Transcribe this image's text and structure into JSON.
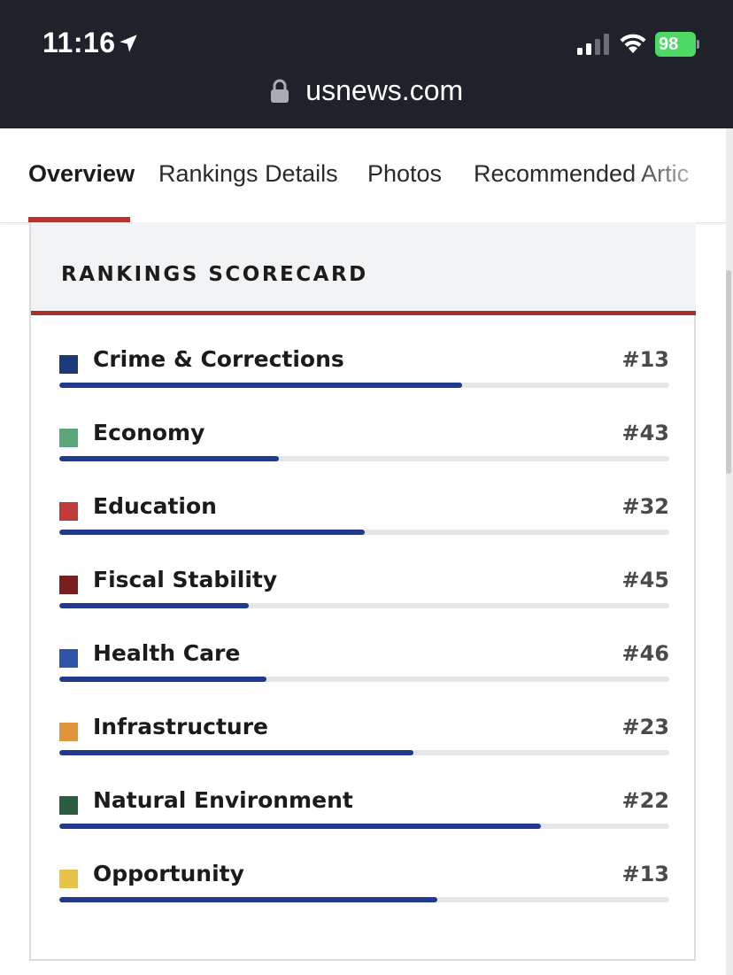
{
  "status_bar": {
    "time": "11:16",
    "battery": "98",
    "url": "usnews.com"
  },
  "tabs": [
    {
      "label": "Overview",
      "active": true
    },
    {
      "label": "Rankings Details",
      "active": false
    },
    {
      "label": "Photos",
      "active": false
    },
    {
      "label": "Recommended Artic",
      "active": false
    }
  ],
  "scorecard": {
    "title": "RANKINGS SCORECARD",
    "items": [
      {
        "label": "Crime & Corrections",
        "rank": "#13",
        "color": "#1c3a7a",
        "fill": 0.66
      },
      {
        "label": "Economy",
        "rank": "#43",
        "color": "#5aa77c",
        "fill": 0.36
      },
      {
        "label": "Education",
        "rank": "#32",
        "color": "#c0393b",
        "fill": 0.5
      },
      {
        "label": "Fiscal Stability",
        "rank": "#45",
        "color": "#7a1f1f",
        "fill": 0.31
      },
      {
        "label": "Health Care",
        "rank": "#46",
        "color": "#2e55a8",
        "fill": 0.34
      },
      {
        "label": "Infrastructure",
        "rank": "#23",
        "color": "#e0953a",
        "fill": 0.58
      },
      {
        "label": "Natural Environment",
        "rank": "#22",
        "color": "#2a5c3f",
        "fill": 0.79
      },
      {
        "label": "Opportunity",
        "rank": "#13",
        "color": "#e9c24a",
        "fill": 0.62
      }
    ]
  },
  "colors": {
    "accent_red": "#b8322e",
    "bar_fill": "#1f3a8f",
    "bar_track": "#e5e6ea",
    "status_bg": "#1f222b"
  }
}
